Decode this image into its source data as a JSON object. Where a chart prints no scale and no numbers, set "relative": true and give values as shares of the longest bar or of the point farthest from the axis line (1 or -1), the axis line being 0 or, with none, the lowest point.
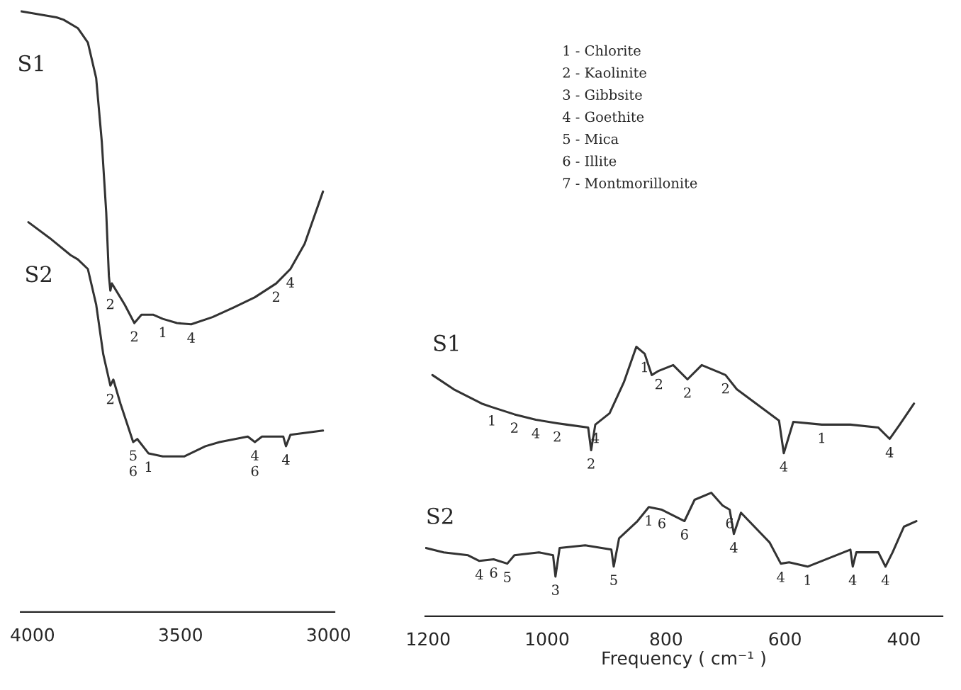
{
  "chart_data": [
    {
      "type": "line",
      "relative": true,
      "xlim": [
        4040,
        2980
      ],
      "xticks": [
        4000,
        3500,
        3000
      ],
      "grid": false,
      "legend": false,
      "marker": "none",
      "line_style": "solid",
      "series": [
        {
          "name": "S1",
          "color": "#333333",
          "x": [
            4038,
            3919,
            3895,
            3847,
            3813,
            3785,
            3766,
            3751,
            3742,
            3737,
            3732,
            3689,
            3656,
            3632,
            3593,
            3560,
            3512,
            3464,
            3392,
            3321,
            3249,
            3177,
            3129,
            3081,
            3019
          ],
          "values": [
            1.0,
            0.99,
            0.986,
            0.972,
            0.948,
            0.889,
            0.783,
            0.665,
            0.559,
            0.535,
            0.547,
            0.512,
            0.481,
            0.495,
            0.495,
            0.488,
            0.481,
            0.479,
            0.491,
            0.507,
            0.524,
            0.547,
            0.571,
            0.613,
            0.7
          ]
        },
        {
          "name": "S2",
          "color": "#333333",
          "x": [
            4014,
            3943,
            3871,
            3847,
            3813,
            3785,
            3761,
            3737,
            3727,
            3703,
            3660,
            3646,
            3608,
            3560,
            3488,
            3416,
            3368,
            3273,
            3249,
            3225,
            3153,
            3144,
            3129,
            3019
          ],
          "values": [
            0.649,
            0.623,
            0.594,
            0.587,
            0.571,
            0.512,
            0.429,
            0.377,
            0.387,
            0.347,
            0.283,
            0.288,
            0.264,
            0.259,
            0.259,
            0.276,
            0.283,
            0.292,
            0.283,
            0.292,
            0.292,
            0.276,
            0.295,
            0.302
          ]
        }
      ],
      "annotations": [
        {
          "text": "2",
          "x": 3737,
          "y": 0.535
        },
        {
          "text": "2",
          "x": 3656,
          "y": 0.481
        },
        {
          "text": "1",
          "x": 3560,
          "y": 0.488
        },
        {
          "text": "4",
          "x": 3464,
          "y": 0.479
        },
        {
          "text": "2",
          "x": 3177,
          "y": 0.547
        },
        {
          "text": "4",
          "x": 3129,
          "y": 0.571
        },
        {
          "text": "2",
          "x": 3737,
          "y": 0.377
        },
        {
          "text": "5",
          "x": 3660,
          "y": 0.283
        },
        {
          "text": "6",
          "x": 3660,
          "y": 0.283
        },
        {
          "text": "1",
          "x": 3608,
          "y": 0.264
        },
        {
          "text": "4",
          "x": 3249,
          "y": 0.283
        },
        {
          "text": "6",
          "x": 3249,
          "y": 0.283
        },
        {
          "text": "4",
          "x": 3144,
          "y": 0.276
        },
        "1 - Chlorite",
        "2 - Kaolinite",
        "3 - Gibbsite",
        "4 - Goethite",
        "5 - Mica",
        "6 - Illite",
        "7 - Montmorillonite"
      ]
    },
    {
      "type": "line",
      "relative": true,
      "xlim": [
        1205,
        335
      ],
      "xticks": [
        1200,
        1000,
        800,
        600,
        400
      ],
      "xlabel": "Frequency ( cm⁻¹ )",
      "grid": false,
      "legend": false,
      "marker": "none",
      "line_style": "solid",
      "series": [
        {
          "name": "S1",
          "color": "#333333",
          "x": [
            1193,
            1157,
            1110,
            1093,
            1055,
            1019,
            983,
            967,
            931,
            926,
            919,
            895,
            871,
            850,
            836,
            824,
            812,
            788,
            764,
            740,
            717,
            700,
            681,
            610,
            602,
            586,
            538,
            490,
            443,
            424,
            407,
            383
          ],
          "values": [
            0.895,
            0.842,
            0.789,
            0.776,
            0.749,
            0.729,
            0.716,
            0.711,
            0.7,
            0.616,
            0.711,
            0.753,
            0.868,
            1.0,
            0.974,
            0.895,
            0.911,
            0.932,
            0.879,
            0.932,
            0.911,
            0.895,
            0.842,
            0.726,
            0.605,
            0.721,
            0.711,
            0.711,
            0.7,
            0.658,
            0.711,
            0.789
          ]
        },
        {
          "name": "S2",
          "color": "#333333",
          "x": [
            1204,
            1174,
            1133,
            1114,
            1090,
            1067,
            1055,
            1014,
            990,
            986,
            979,
            936,
            892,
            888,
            879,
            848,
            829,
            807,
            769,
            752,
            724,
            705,
            693,
            686,
            674,
            626,
            607,
            593,
            562,
            514,
            490,
            486,
            480,
            443,
            431,
            419,
            400,
            379
          ],
          "values": [
            0.253,
            0.237,
            0.226,
            0.205,
            0.211,
            0.195,
            0.226,
            0.237,
            0.226,
            0.147,
            0.253,
            0.263,
            0.247,
            0.184,
            0.289,
            0.353,
            0.405,
            0.395,
            0.353,
            0.432,
            0.458,
            0.411,
            0.395,
            0.305,
            0.384,
            0.274,
            0.195,
            0.2,
            0.184,
            0.226,
            0.247,
            0.184,
            0.237,
            0.237,
            0.184,
            0.237,
            0.332,
            0.353
          ]
        }
      ],
      "annotations": [
        {
          "text": "1",
          "x": 1093,
          "y": 0.776
        },
        {
          "text": "2",
          "x": 1055,
          "y": 0.749
        },
        {
          "text": "4",
          "x": 1019,
          "y": 0.729
        },
        {
          "text": "2",
          "x": 983,
          "y": 0.716
        },
        {
          "text": "4",
          "x": 919,
          "y": 0.711
        },
        {
          "text": "2",
          "x": 926,
          "y": 0.616
        },
        {
          "text": "1",
          "x": 836,
          "y": 0.974
        },
        {
          "text": "2",
          "x": 812,
          "y": 0.911
        },
        {
          "text": "2",
          "x": 764,
          "y": 0.879
        },
        {
          "text": "2",
          "x": 700,
          "y": 0.895
        },
        {
          "text": "4",
          "x": 602,
          "y": 0.605
        },
        {
          "text": "1",
          "x": 538,
          "y": 0.711
        },
        {
          "text": "4",
          "x": 424,
          "y": 0.658
        },
        {
          "text": "4",
          "x": 1114,
          "y": 0.205
        },
        {
          "text": "6",
          "x": 1090,
          "y": 0.211
        },
        {
          "text": "5",
          "x": 1067,
          "y": 0.195
        },
        {
          "text": "3",
          "x": 986,
          "y": 0.147
        },
        {
          "text": "5",
          "x": 888,
          "y": 0.184
        },
        {
          "text": "1",
          "x": 829,
          "y": 0.405
        },
        {
          "text": "6",
          "x": 807,
          "y": 0.395
        },
        {
          "text": "6",
          "x": 769,
          "y": 0.353
        },
        {
          "text": "6",
          "x": 693,
          "y": 0.395
        },
        {
          "text": "4",
          "x": 686,
          "y": 0.305
        },
        {
          "text": "4",
          "x": 607,
          "y": 0.195
        },
        {
          "text": "1",
          "x": 562,
          "y": 0.184
        },
        {
          "text": "4",
          "x": 486,
          "y": 0.184
        },
        {
          "text": "4",
          "x": 431,
          "y": 0.184
        }
      ]
    }
  ]
}
